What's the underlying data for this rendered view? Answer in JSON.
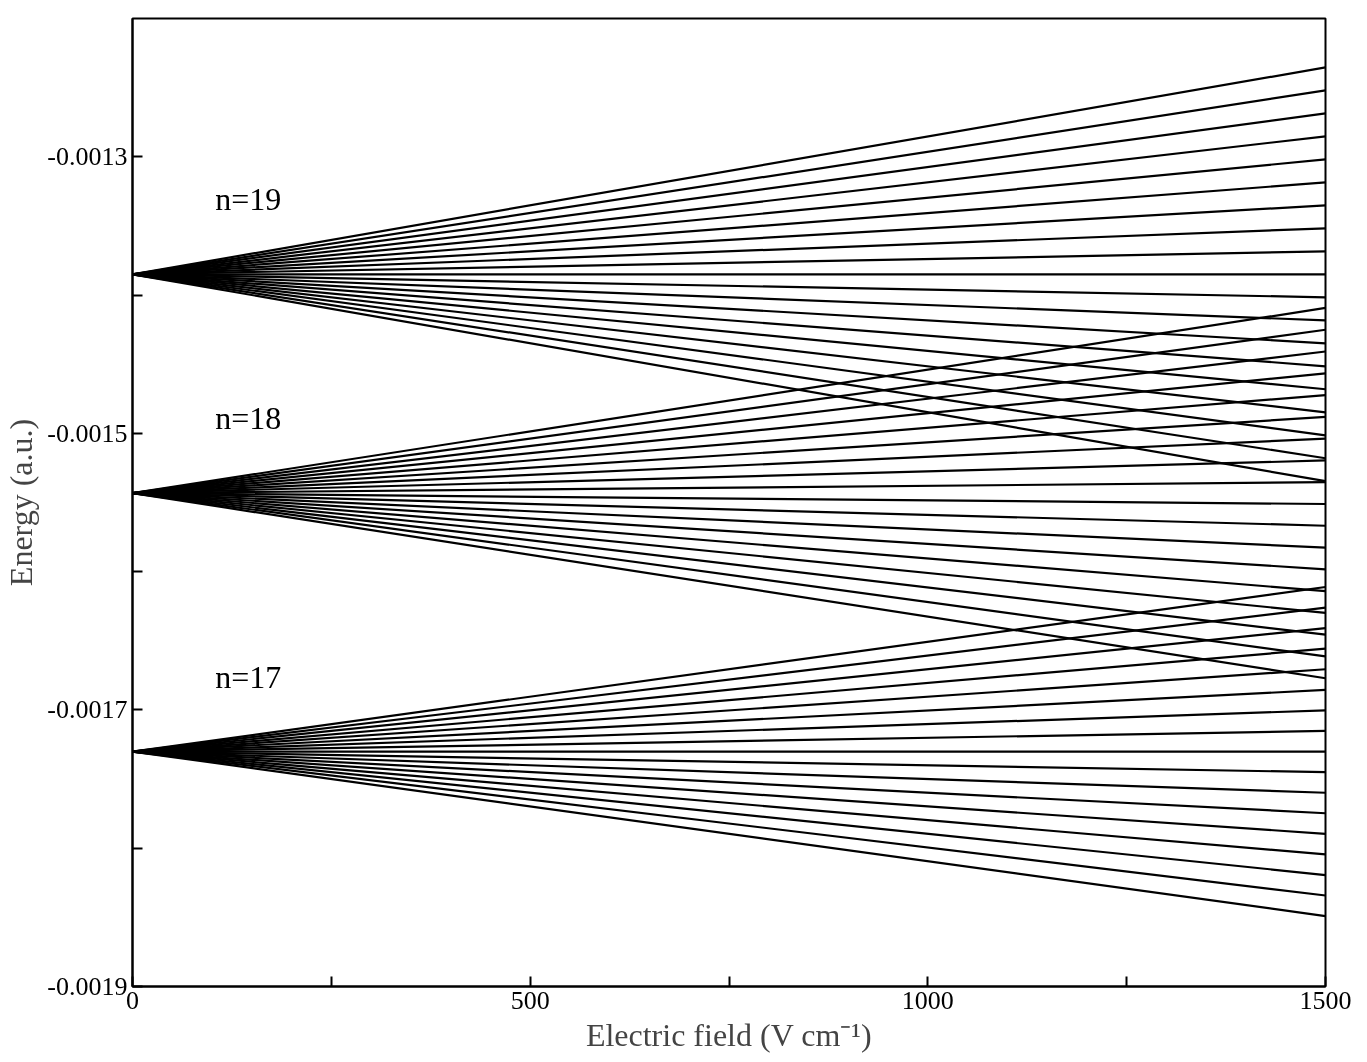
{
  "chart_data": {
    "type": "line",
    "xlabel": "Electric field (V cm⁻¹)",
    "ylabel": "Energy (a.u.)",
    "x": [
      0,
      1500
    ],
    "xlim": [
      0,
      1500
    ],
    "ylim": [
      -0.0019,
      -0.0012
    ],
    "xticks": [
      0,
      {
        "value": 250,
        "label": null
      },
      500,
      {
        "value": 750,
        "label": null
      },
      1000,
      {
        "value": 1250,
        "label": null
      },
      1500
    ],
    "yticks": [
      -0.0019,
      {
        "value": -0.0018,
        "label": null
      },
      -0.0017,
      {
        "value": -0.0016,
        "label": null
      },
      -0.0015,
      {
        "value": -0.0014,
        "label": null
      },
      -0.0013
    ],
    "grid": false,
    "marker": "none",
    "line_style": "solid",
    "annotations": [
      "n=19",
      "n=18",
      "n=17"
    ],
    "series": [
      {
        "color": "#000000",
        "values": [
          -0.001385,
          -0.0012354
        ]
      },
      {
        "color": "#000000",
        "values": [
          -0.001385,
          -0.001252
        ]
      },
      {
        "color": "#000000",
        "values": [
          -0.001385,
          -0.0012686
        ]
      },
      {
        "color": "#000000",
        "values": [
          -0.001385,
          -0.0012852
        ]
      },
      {
        "color": "#000000",
        "values": [
          -0.001385,
          -0.0013019
        ]
      },
      {
        "color": "#000000",
        "values": [
          -0.001385,
          -0.0013185
        ]
      },
      {
        "color": "#000000",
        "values": [
          -0.001385,
          -0.0013351
        ]
      },
      {
        "color": "#000000",
        "values": [
          -0.001385,
          -0.0013517
        ]
      },
      {
        "color": "#000000",
        "values": [
          -0.001385,
          -0.0013684
        ]
      },
      {
        "color": "#000000",
        "values": [
          -0.001385,
          -0.001385
        ]
      },
      {
        "color": "#000000",
        "values": [
          -0.001385,
          -0.0014016
        ]
      },
      {
        "color": "#000000",
        "values": [
          -0.001385,
          -0.0014183
        ]
      },
      {
        "color": "#000000",
        "values": [
          -0.001385,
          -0.0014349
        ]
      },
      {
        "color": "#000000",
        "values": [
          -0.001385,
          -0.0014515
        ]
      },
      {
        "color": "#000000",
        "values": [
          -0.001385,
          -0.0014681
        ]
      },
      {
        "color": "#000000",
        "values": [
          -0.001385,
          -0.0014848
        ]
      },
      {
        "color": "#000000",
        "values": [
          -0.001385,
          -0.0015014
        ]
      },
      {
        "color": "#000000",
        "values": [
          -0.001385,
          -0.001518
        ]
      },
      {
        "color": "#000000",
        "values": [
          -0.001385,
          -0.0015346
        ]
      },
      {
        "color": "#000000",
        "values": [
          -0.0015432,
          -0.0014093
        ]
      },
      {
        "color": "#000000",
        "values": [
          -0.0015432,
          -0.0014251
        ]
      },
      {
        "color": "#000000",
        "values": [
          -0.0015432,
          -0.0014408
        ]
      },
      {
        "color": "#000000",
        "values": [
          -0.0015432,
          -0.0014566
        ]
      },
      {
        "color": "#000000",
        "values": [
          -0.0015432,
          -0.0014723
        ]
      },
      {
        "color": "#000000",
        "values": [
          -0.0015432,
          -0.0014881
        ]
      },
      {
        "color": "#000000",
        "values": [
          -0.0015432,
          -0.0015038
        ]
      },
      {
        "color": "#000000",
        "values": [
          -0.0015432,
          -0.0015196
        ]
      },
      {
        "color": "#000000",
        "values": [
          -0.0015432,
          -0.0015353
        ]
      },
      {
        "color": "#000000",
        "values": [
          -0.0015432,
          -0.0015511
        ]
      },
      {
        "color": "#000000",
        "values": [
          -0.0015432,
          -0.0015668
        ]
      },
      {
        "color": "#000000",
        "values": [
          -0.0015432,
          -0.0015826
        ]
      },
      {
        "color": "#000000",
        "values": [
          -0.0015432,
          -0.0015983
        ]
      },
      {
        "color": "#000000",
        "values": [
          -0.0015432,
          -0.0016141
        ]
      },
      {
        "color": "#000000",
        "values": [
          -0.0015432,
          -0.0016298
        ]
      },
      {
        "color": "#000000",
        "values": [
          -0.0015432,
          -0.0016456
        ]
      },
      {
        "color": "#000000",
        "values": [
          -0.0015432,
          -0.0016613
        ]
      },
      {
        "color": "#000000",
        "values": [
          -0.0015432,
          -0.0016771
        ]
      },
      {
        "color": "#000000",
        "values": [
          -0.0017301,
          -0.0016111
        ]
      },
      {
        "color": "#000000",
        "values": [
          -0.0017301,
          -0.001626
        ]
      },
      {
        "color": "#000000",
        "values": [
          -0.0017301,
          -0.0016408
        ]
      },
      {
        "color": "#000000",
        "values": [
          -0.0017301,
          -0.0016557
        ]
      },
      {
        "color": "#000000",
        "values": [
          -0.0017301,
          -0.0016706
        ]
      },
      {
        "color": "#000000",
        "values": [
          -0.0017301,
          -0.0016855
        ]
      },
      {
        "color": "#000000",
        "values": [
          -0.0017301,
          -0.0017003
        ]
      },
      {
        "color": "#000000",
        "values": [
          -0.0017301,
          -0.0017152
        ]
      },
      {
        "color": "#000000",
        "values": [
          -0.0017301,
          -0.0017301
        ]
      },
      {
        "color": "#000000",
        "values": [
          -0.0017301,
          -0.001745
        ]
      },
      {
        "color": "#000000",
        "values": [
          -0.0017301,
          -0.0017599
        ]
      },
      {
        "color": "#000000",
        "values": [
          -0.0017301,
          -0.0017747
        ]
      },
      {
        "color": "#000000",
        "values": [
          -0.0017301,
          -0.0017896
        ]
      },
      {
        "color": "#000000",
        "values": [
          -0.0017301,
          -0.0018045
        ]
      },
      {
        "color": "#000000",
        "values": [
          -0.0017301,
          -0.0018194
        ]
      },
      {
        "color": "#000000",
        "values": [
          -0.0017301,
          -0.0018342
        ]
      },
      {
        "color": "#000000",
        "values": [
          -0.0017301,
          -0.0018491
        ]
      }
    ]
  }
}
